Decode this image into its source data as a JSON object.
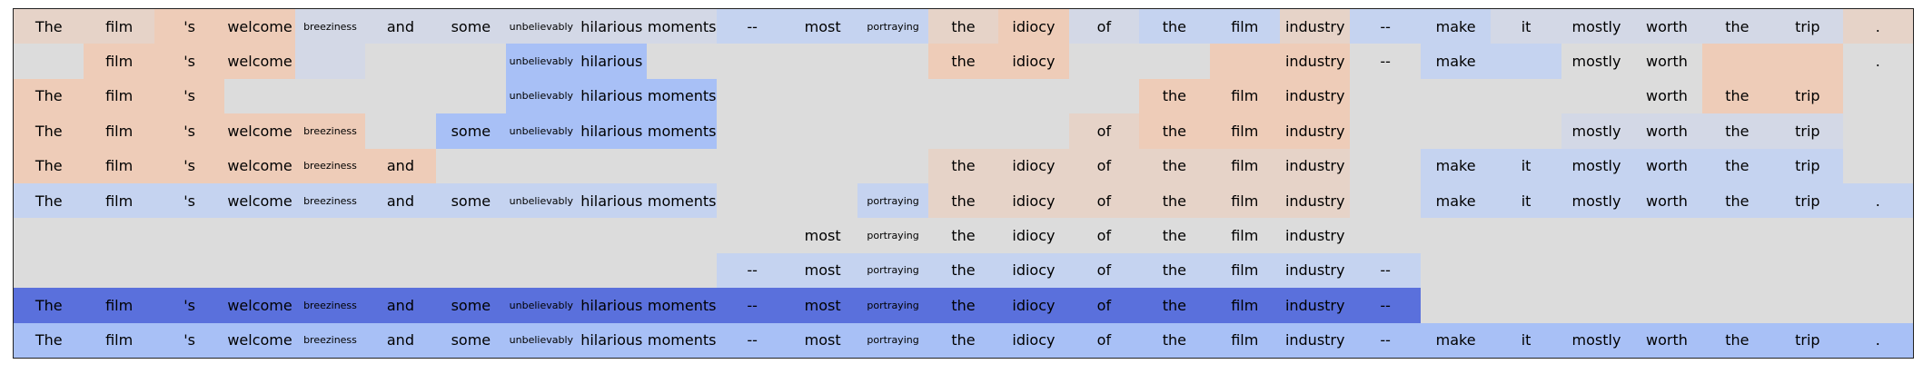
{
  "tokens": [
    "The",
    "film",
    "'s",
    "welcome",
    "breeziness",
    "and",
    "some",
    "unbelievably",
    "hilarious",
    "moments",
    "--",
    "most",
    "portraying",
    "the",
    "idiocy",
    "of",
    "the",
    "film",
    "industry",
    "--",
    "make",
    "it",
    "mostly",
    "worth",
    "the",
    "trip",
    "."
  ],
  "small_tokens": [
    "breeziness",
    "unbelievably",
    "portraying"
  ],
  "colors": {
    "O": "#dcdcdc",
    "P": "#eeccb8",
    "Q": "#e6d3c8",
    "R": "#d3d8e6",
    "S": "#c5d3f0",
    "T": "#a8c0f6",
    "U": "#5a70dc"
  },
  "rows": [
    {
      "mask": "111111111111111111111111111",
      "colors": "QQPPRRRRRRSSSQPRSSQSSRRRRRQ"
    },
    {
      "mask": "011100011000011000111011001",
      "colors": "OPPPROOTTOOOOPPOOPPOSSOOPPO"
    },
    {
      "mask": "111000011100000011100001110",
      "colors": "PPPOOOOTTTOOOOOOPPPOOOOOPPO"
    },
    {
      "mask": "111110111100000111100011110",
      "colors": "PPPPPOTTTTOOOOOQPPPOOORRRRO"
    },
    {
      "mask": "111111000000011111101111110",
      "colors": "PPPPPPOOOOOOOQQQQQQOSSSSSSO"
    },
    {
      "mask": "111111111100111111101111111",
      "colors": "SSSSSSSSSSOOSQQQQQQOSSSSSSS"
    },
    {
      "mask": "000000000001111111100000000",
      "colors": "OOOOOOOOOOOOOOOOOOOOOOOOOOO"
    },
    {
      "mask": "000000000011111111110000000",
      "colors": "OOOOOOOOOOSSSSSSSSSSOOOOOOO"
    },
    {
      "mask": "111111111111111111110000000",
      "colors": "UUUUUUUUUUUUUUUUUUUUOOOOOOO"
    },
    {
      "mask": "111111111111111111111111111",
      "colors": "TTTTTTTTTTTTTTTTTTTTTTTTTTT"
    }
  ]
}
